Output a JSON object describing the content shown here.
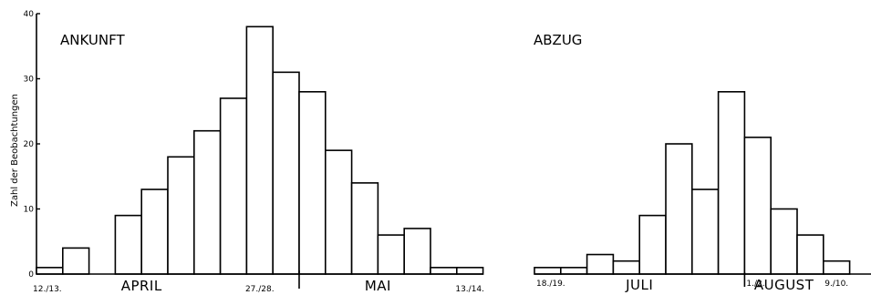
{
  "chart_data": {
    "type": "bar",
    "ylabel": "Zahl der Beobachtungen",
    "ylim": [
      0,
      40
    ],
    "yticks": [
      0,
      10,
      20,
      30,
      40
    ],
    "grid": false,
    "panels": [
      {
        "title": "ANKUNFT",
        "values": [
          1,
          4,
          null,
          9,
          13,
          18,
          22,
          27,
          38,
          31,
          28,
          19,
          14,
          6,
          7,
          1,
          1
        ],
        "date_labels": [
          {
            "text": "12./13.",
            "bin": 0
          },
          {
            "text": "27./28.",
            "bin": 8
          },
          {
            "text": "13./14.",
            "bin": 16
          }
        ],
        "month_labels": [
          {
            "text": "APRIL",
            "bin": 3.5
          },
          {
            "text": "MAI",
            "bin": 12.5
          }
        ],
        "divider_after_bin": 9
      },
      {
        "title": "ABZUG",
        "values": [
          1,
          1,
          3,
          2,
          9,
          20,
          13,
          28,
          21,
          10,
          6,
          2
        ],
        "date_labels": [
          {
            "text": "18./19.",
            "bin": 0
          },
          {
            "text": "1./2.",
            "bin": 7
          },
          {
            "text": "9./10.",
            "bin": 11
          }
        ],
        "month_labels": [
          {
            "text": "JULI",
            "bin": 3.5
          },
          {
            "text": "AUGUST",
            "bin": 9
          }
        ],
        "divider_after_bin": 7
      }
    ]
  }
}
